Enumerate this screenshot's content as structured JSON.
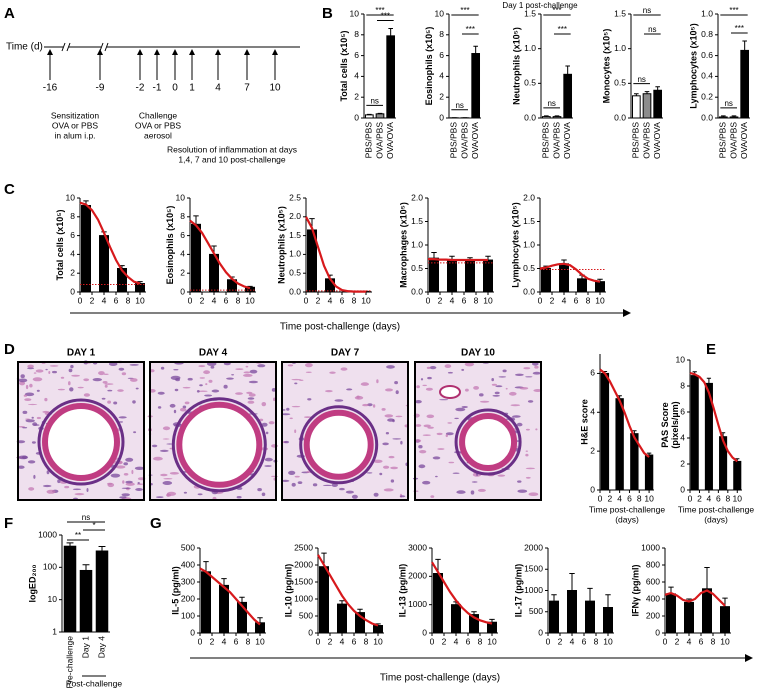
{
  "panel_labels": [
    "A",
    "B",
    "C",
    "D",
    "E",
    "F",
    "G"
  ],
  "timeline": {
    "axis_label": "Time (d)",
    "days": [
      "-16",
      "-9",
      "-2",
      "-1",
      "0",
      "1",
      "4",
      "7",
      "10"
    ],
    "sensitization": [
      "Sensitization",
      "OVA or PBS",
      "in alum i.p."
    ],
    "challenge": [
      "Challenge",
      "OVA or PBS",
      "aerosol"
    ],
    "resolution": [
      "Resolution of inflammation at days",
      "1,4, 7 and 10 post-challenge"
    ]
  },
  "panel_b_title": "Day 1 post-challenge",
  "panel_c_xlabel": "Time post-challenge (days)",
  "panel_d_days": [
    "DAY 1",
    "DAY 4",
    "DAY 7",
    "DAY 10"
  ],
  "panel_g_xlabel": "Time post-challenge (days)",
  "chart_data": [
    {
      "type": "bar",
      "ylabel": "Total cells (x10⁵)",
      "categories": [
        "PBS/PBS",
        "OVA/PBS",
        "OVA/OVA"
      ],
      "colors": [
        "#ffffff",
        "#8c8c8c",
        "#000000"
      ],
      "values": [
        0.3,
        0.4,
        7.9
      ],
      "errors": [
        0.05,
        0.05,
        0.7
      ],
      "ylim": [
        0,
        10
      ],
      "yticks": [
        0,
        2,
        4,
        6,
        8,
        10
      ],
      "significance": [
        "***",
        "***",
        "ns"
      ]
    },
    {
      "type": "bar",
      "ylabel": "Eosinophils (x10⁵)",
      "categories": [
        "PBS/PBS",
        "OVA/PBS",
        "OVA/OVA"
      ],
      "colors": [
        "#ffffff",
        "#8c8c8c",
        "#000000"
      ],
      "values": [
        0.02,
        0.02,
        6.2
      ],
      "errors": [
        0.01,
        0.01,
        0.7
      ],
      "ylim": [
        0,
        10
      ],
      "yticks": [
        0,
        2,
        4,
        6,
        8,
        10
      ],
      "significance": [
        "***",
        "***",
        "ns"
      ]
    },
    {
      "type": "bar",
      "ylabel": "Neutrophils (x10⁵)",
      "categories": [
        "PBS/PBS",
        "OVA/PBS",
        "OVA/OVA"
      ],
      "colors": [
        "#ffffff",
        "#8c8c8c",
        "#000000"
      ],
      "values": [
        0.02,
        0.02,
        0.63
      ],
      "errors": [
        0.01,
        0.01,
        0.12
      ],
      "ylim": [
        0,
        1.5
      ],
      "yticks": [
        {
          "value": 0,
          "label": "0.0"
        },
        0.5,
        {
          "value": 1,
          "label": "1.0"
        },
        1.5
      ],
      "significance": [
        "***",
        "***",
        "ns"
      ]
    },
    {
      "type": "bar",
      "ylabel": "Monocytes (x10⁵)",
      "categories": [
        "PBS/PBS",
        "OVA/PBS",
        "OVA/OVA"
      ],
      "colors": [
        "#ffffff",
        "#8c8c8c",
        "#000000"
      ],
      "values": [
        0.32,
        0.35,
        0.4
      ],
      "errors": [
        0.03,
        0.03,
        0.05
      ],
      "ylim": [
        0,
        1.5
      ],
      "yticks": [
        {
          "value": 0,
          "label": "0.0"
        },
        0.5,
        {
          "value": 1,
          "label": "1.0"
        },
        1.5
      ],
      "significance": [
        "ns",
        "ns",
        "ns"
      ]
    },
    {
      "type": "bar",
      "ylabel": "Lymphocytes (x10⁵)",
      "categories": [
        "PBS/PBS",
        "OVA/PBS",
        "OVA/OVA"
      ],
      "colors": [
        "#ffffff",
        "#8c8c8c",
        "#000000"
      ],
      "values": [
        0.01,
        0.01,
        0.65
      ],
      "errors": [
        0.01,
        0.01,
        0.09
      ],
      "ylim": [
        0,
        1
      ],
      "yticks": [
        {
          "value": 0,
          "label": "0.0"
        },
        0.2,
        0.4,
        0.6,
        0.8,
        {
          "value": 1,
          "label": "1.0"
        }
      ],
      "significance": [
        "***",
        "***",
        "ns"
      ]
    },
    {
      "type": "bar",
      "ylabel": "Total cells (x10⁵)",
      "x": [
        1,
        4,
        7,
        10
      ],
      "values": [
        9.2,
        6.0,
        2.5,
        0.9
      ],
      "errors": [
        0.5,
        0.4,
        0.3,
        0.2
      ],
      "color": "#000000",
      "baseline": 0.8,
      "fit_color": "#d7191c",
      "fit": {
        "x": [
          0,
          1,
          2,
          3,
          4,
          5,
          6,
          7,
          8,
          9,
          10
        ],
        "values": [
          9.5,
          9.3,
          8.7,
          7.7,
          6.3,
          4.8,
          3.4,
          2.3,
          1.6,
          1.1,
          0.9
        ]
      },
      "xlim": [
        0,
        11
      ],
      "xticks": [
        0,
        2,
        4,
        6,
        8,
        10
      ],
      "ylim": [
        0,
        10
      ],
      "yticks": [
        0,
        2,
        4,
        6,
        8,
        10
      ]
    },
    {
      "type": "bar",
      "ylabel": "Eosinophils (x10⁵)",
      "x": [
        1,
        4,
        7,
        10
      ],
      "values": [
        7.2,
        4.0,
        1.3,
        0.5
      ],
      "errors": [
        0.9,
        0.9,
        0.3,
        0.1
      ],
      "color": "#000000",
      "baseline": 0.2,
      "fit_color": "#d7191c",
      "fit": {
        "x": [
          0,
          1,
          2,
          3,
          4,
          5,
          6,
          7,
          8,
          9,
          10
        ],
        "values": [
          7.6,
          7.1,
          6.3,
          5.2,
          4.1,
          3.0,
          2.1,
          1.4,
          0.9,
          0.6,
          0.4
        ]
      },
      "xlim": [
        0,
        11
      ],
      "xticks": [
        0,
        2,
        4,
        6,
        8,
        10
      ],
      "ylim": [
        0,
        10
      ],
      "yticks": [
        0,
        2,
        4,
        6,
        8,
        10
      ]
    },
    {
      "type": "bar",
      "ylabel": "Neutrophils (x10⁵)",
      "x": [
        1,
        4,
        7,
        10
      ],
      "values": [
        1.65,
        0.35,
        0.02,
        0.01
      ],
      "errors": [
        0.3,
        0.1,
        0.01,
        0.01
      ],
      "color": "#000000",
      "baseline": 0.03,
      "fit_color": "#d7191c",
      "fit": {
        "x": [
          0,
          1,
          2,
          3,
          4,
          5,
          6,
          7,
          8,
          9,
          10
        ],
        "values": [
          2.0,
          1.7,
          1.2,
          0.7,
          0.35,
          0.15,
          0.05,
          0.02,
          0.01,
          0.01,
          0.01
        ]
      },
      "xlim": [
        0,
        11
      ],
      "xticks": [
        0,
        2,
        4,
        6,
        8,
        10
      ],
      "ylim": [
        0,
        2.5
      ],
      "yticks": [
        {
          "value": 0,
          "label": "0.0"
        },
        0.5,
        {
          "value": 1,
          "label": "1.0"
        },
        1.5,
        {
          "value": 2,
          "label": "2.0"
        },
        2.5
      ]
    },
    {
      "type": "bar",
      "ylabel": "Macrophages (x10⁵)",
      "x": [
        1,
        4,
        7,
        10
      ],
      "values": [
        0.72,
        0.68,
        0.65,
        0.68
      ],
      "errors": [
        0.12,
        0.08,
        0.08,
        0.08
      ],
      "color": "#000000",
      "baseline": 0.62,
      "fit_color": "#d7191c",
      "fit": {
        "x": [
          0,
          1,
          2,
          3,
          4,
          5,
          6,
          7,
          8,
          9,
          10
        ],
        "values": [
          0.7,
          0.7,
          0.69,
          0.69,
          0.68,
          0.68,
          0.68,
          0.68,
          0.68,
          0.68,
          0.68
        ]
      },
      "xlim": [
        0,
        11
      ],
      "xticks": [
        0,
        2,
        4,
        6,
        8,
        10
      ],
      "ylim": [
        0,
        2
      ],
      "yticks": [
        {
          "value": 0,
          "label": "0.0"
        },
        0.5,
        {
          "value": 1,
          "label": "1.0"
        },
        1.5,
        {
          "value": 2,
          "label": "2.0"
        }
      ]
    },
    {
      "type": "bar",
      "ylabel": "Lymphocytes (x10⁵)",
      "x": [
        1,
        4,
        7,
        10
      ],
      "values": [
        0.5,
        0.6,
        0.28,
        0.22
      ],
      "errors": [
        0.05,
        0.08,
        0.08,
        0.05
      ],
      "color": "#000000",
      "baseline": 0.48,
      "fit_color": "#d7191c",
      "fit": {
        "x": [
          0,
          1,
          2,
          3,
          4,
          5,
          6,
          7,
          8,
          9,
          10
        ],
        "values": [
          0.5,
          0.52,
          0.56,
          0.59,
          0.6,
          0.57,
          0.48,
          0.37,
          0.28,
          0.24,
          0.22
        ]
      },
      "xlim": [
        0,
        11
      ],
      "xticks": [
        0,
        2,
        4,
        6,
        8,
        10
      ],
      "ylim": [
        0,
        2
      ],
      "yticks": [
        {
          "value": 0,
          "label": "0.0"
        },
        0.5,
        {
          "value": 1,
          "label": "1.0"
        },
        1.5,
        {
          "value": 2,
          "label": "2.0"
        }
      ]
    },
    {
      "type": "bar",
      "ylabel": "H&E score",
      "xlabel": [
        "Time post-challenge",
        "(days)"
      ],
      "x": [
        1,
        4,
        7,
        10
      ],
      "values": [
        6.0,
        4.7,
        2.9,
        1.8
      ],
      "errors": [
        0.1,
        0.15,
        0.15,
        0.1
      ],
      "color": "#000000",
      "fit_color": "#d7191c",
      "fit": {
        "x": [
          0,
          1,
          2,
          3,
          4,
          5,
          6,
          7,
          8,
          9,
          10
        ],
        "values": [
          6.2,
          6.0,
          5.6,
          5.1,
          4.6,
          4.0,
          3.3,
          2.7,
          2.3,
          1.9,
          1.7
        ]
      },
      "xlim": [
        0,
        11
      ],
      "xticks": [
        0,
        2,
        4,
        6,
        8,
        10
      ],
      "ylim": [
        0,
        7
      ],
      "yticks": [
        0,
        2,
        4,
        6
      ]
    },
    {
      "type": "bar",
      "ylabel": [
        "PAS Score",
        "(pixels/µm)"
      ],
      "xlabel": [
        "Time post-challenge",
        "(days)"
      ],
      "x": [
        1,
        4,
        7,
        10
      ],
      "values": [
        8.8,
        8.2,
        4.1,
        2.2
      ],
      "errors": [
        0.3,
        0.4,
        0.3,
        0.2
      ],
      "color": "#000000",
      "fit_color": "#d7191c",
      "fit": {
        "x": [
          0,
          1,
          2,
          3,
          4,
          5,
          6,
          7,
          8,
          9,
          10
        ],
        "values": [
          9.0,
          8.9,
          8.7,
          8.3,
          7.5,
          6.3,
          5.0,
          3.8,
          3.0,
          2.5,
          2.2
        ]
      },
      "xlim": [
        0,
        11
      ],
      "xticks": [
        0,
        2,
        4,
        6,
        8,
        10
      ],
      "ylim": [
        0,
        10
      ],
      "yticks": [
        0,
        2,
        4,
        6,
        8,
        10
      ]
    },
    {
      "type": "bar",
      "ylabel": "logED₂₀₀",
      "log_scale": true,
      "categories": [
        "Pre-challenge",
        "Day 1",
        "Day 4"
      ],
      "group_label": "Post-challenge",
      "color": "#000000",
      "values": [
        450,
        80,
        320
      ],
      "errors": [
        120,
        40,
        120
      ],
      "ylim": [
        1,
        1000
      ],
      "yticks": [
        1,
        10,
        100,
        1000
      ],
      "significance": [
        "ns",
        "*",
        "**"
      ]
    },
    {
      "type": "bar",
      "ylabel": "IL-5 (pg/ml)",
      "x": [
        1,
        4,
        7,
        10
      ],
      "values": [
        360,
        280,
        180,
        60
      ],
      "errors": [
        60,
        40,
        30,
        30
      ],
      "color": "#000000",
      "fit_color": "#d7191c",
      "fit": {
        "x": [
          0,
          1,
          2,
          3,
          4,
          5,
          6,
          7,
          8,
          9,
          10
        ],
        "values": [
          380,
          360,
          330,
          300,
          270,
          240,
          200,
          160,
          120,
          80,
          50
        ]
      },
      "xlim": [
        0,
        11
      ],
      "xticks": [
        0,
        2,
        4,
        6,
        8,
        10
      ],
      "ylim": [
        0,
        500
      ],
      "yticks": [
        0,
        100,
        200,
        300,
        400,
        500
      ]
    },
    {
      "type": "bar",
      "ylabel": "IL-10 (pg/ml)",
      "x": [
        1,
        4,
        7,
        10
      ],
      "values": [
        1950,
        850,
        600,
        220
      ],
      "errors": [
        400,
        100,
        100,
        50
      ],
      "color": "#000000",
      "fit_color": "#d7191c",
      "fit": {
        "x": [
          0,
          1,
          2,
          3,
          4,
          5,
          6,
          7,
          8,
          9,
          10
        ],
        "values": [
          2300,
          2000,
          1700,
          1400,
          1100,
          850,
          650,
          500,
          380,
          280,
          220
        ]
      },
      "xlim": [
        0,
        11
      ],
      "xticks": [
        0,
        2,
        4,
        6,
        8,
        10
      ],
      "ylim": [
        0,
        2500
      ],
      "yticks": [
        0,
        500,
        1000,
        1500,
        2000,
        2500
      ]
    },
    {
      "type": "bar",
      "ylabel": "IL-13 (pg/ml)",
      "x": [
        1,
        4,
        7,
        10
      ],
      "values": [
        2100,
        1000,
        650,
        380
      ],
      "errors": [
        500,
        100,
        100,
        100
      ],
      "color": "#000000",
      "fit_color": "#d7191c",
      "fit": {
        "x": [
          0,
          1,
          2,
          3,
          4,
          5,
          6,
          7,
          8,
          9,
          10
        ],
        "values": [
          2500,
          2150,
          1800,
          1450,
          1150,
          900,
          700,
          550,
          450,
          380,
          330
        ]
      },
      "xlim": [
        0,
        11
      ],
      "xticks": [
        0,
        2,
        4,
        6,
        8,
        10
      ],
      "ylim": [
        0,
        3000
      ],
      "yticks": [
        0,
        1000,
        2000,
        3000
      ]
    },
    {
      "type": "bar",
      "ylabel": "IL-17 (pg/ml)",
      "x": [
        1,
        4,
        7,
        10
      ],
      "values": [
        750,
        1000,
        750,
        600
      ],
      "errors": [
        150,
        400,
        300,
        300
      ],
      "color": "#000000",
      "xlim": [
        0,
        11
      ],
      "xticks": [
        0,
        2,
        4,
        6,
        8,
        10
      ],
      "ylim": [
        0,
        2000
      ],
      "yticks": [
        0,
        500,
        1000,
        1500,
        2000
      ]
    },
    {
      "type": "bar",
      "ylabel": "IFNγ (pg/ml)",
      "x": [
        1,
        4,
        7,
        10
      ],
      "values": [
        460,
        360,
        520,
        310
      ],
      "errors": [
        80,
        40,
        250,
        100
      ],
      "color": "#000000",
      "fit_color": "#d7191c",
      "fit": {
        "x": [
          0,
          1,
          2,
          3,
          4,
          5,
          6,
          7,
          8,
          9,
          10
        ],
        "values": [
          450,
          470,
          440,
          390,
          370,
          400,
          470,
          500,
          460,
          390,
          320
        ]
      },
      "xlim": [
        0,
        11
      ],
      "xticks": [
        0,
        2,
        4,
        6,
        8,
        10
      ],
      "ylim": [
        0,
        1000
      ],
      "yticks": [
        0,
        200,
        400,
        600,
        800,
        1000
      ]
    }
  ]
}
